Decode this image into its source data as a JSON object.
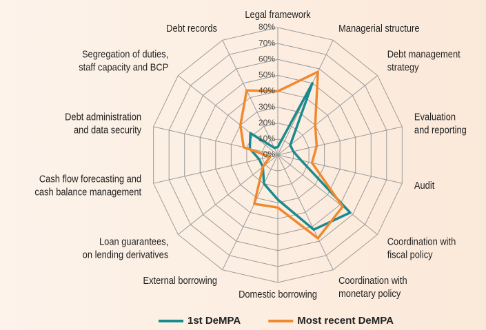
{
  "chart_data": {
    "type": "radar",
    "categories": [
      [
        "Legal framework"
      ],
      [
        "Managerial structure"
      ],
      [
        "Debt management",
        "strategy"
      ],
      [
        "Evaluation",
        "and reporting"
      ],
      [
        "Audit"
      ],
      [
        "Coordination with",
        "fiscal policy"
      ],
      [
        "Coordination with",
        "monetary policy"
      ],
      [
        "Domestic borrowing"
      ],
      [
        "External borrowing"
      ],
      [
        "Loan guarantees,",
        "on lending derivatives"
      ],
      [
        "Cash flow forecasting and",
        "cash balance management"
      ],
      [
        "Debt administration",
        "and data security"
      ],
      [
        "Segregation of duties,",
        "staff capacity and BCP"
      ],
      [
        "Debt records"
      ]
    ],
    "series": [
      {
        "name": "1st DeMPA",
        "color": "#1a8a8e",
        "values": [
          5,
          50,
          10,
          10,
          15,
          58,
          52,
          28,
          20,
          12,
          12,
          18,
          22,
          5
        ]
      },
      {
        "name": "Most recent DeMPA",
        "color": "#f0892e",
        "values": [
          40,
          58,
          30,
          25,
          22,
          52,
          58,
          33,
          34,
          12,
          5,
          22,
          30,
          45
        ]
      }
    ],
    "ylim": [
      0,
      80
    ],
    "yticks": [
      {
        "value": 0,
        "label": "0%"
      },
      {
        "value": 10,
        "label": "10%"
      },
      {
        "value": 20,
        "label": "20%"
      },
      {
        "value": 30,
        "label": "30%"
      },
      {
        "value": 40,
        "label": "40%"
      },
      {
        "value": 50,
        "label": "50%"
      },
      {
        "value": 60,
        "label": "60%"
      },
      {
        "value": 70,
        "label": "70%"
      },
      {
        "value": 80,
        "label": "80%"
      }
    ],
    "grid": true,
    "legend": "bottom"
  }
}
